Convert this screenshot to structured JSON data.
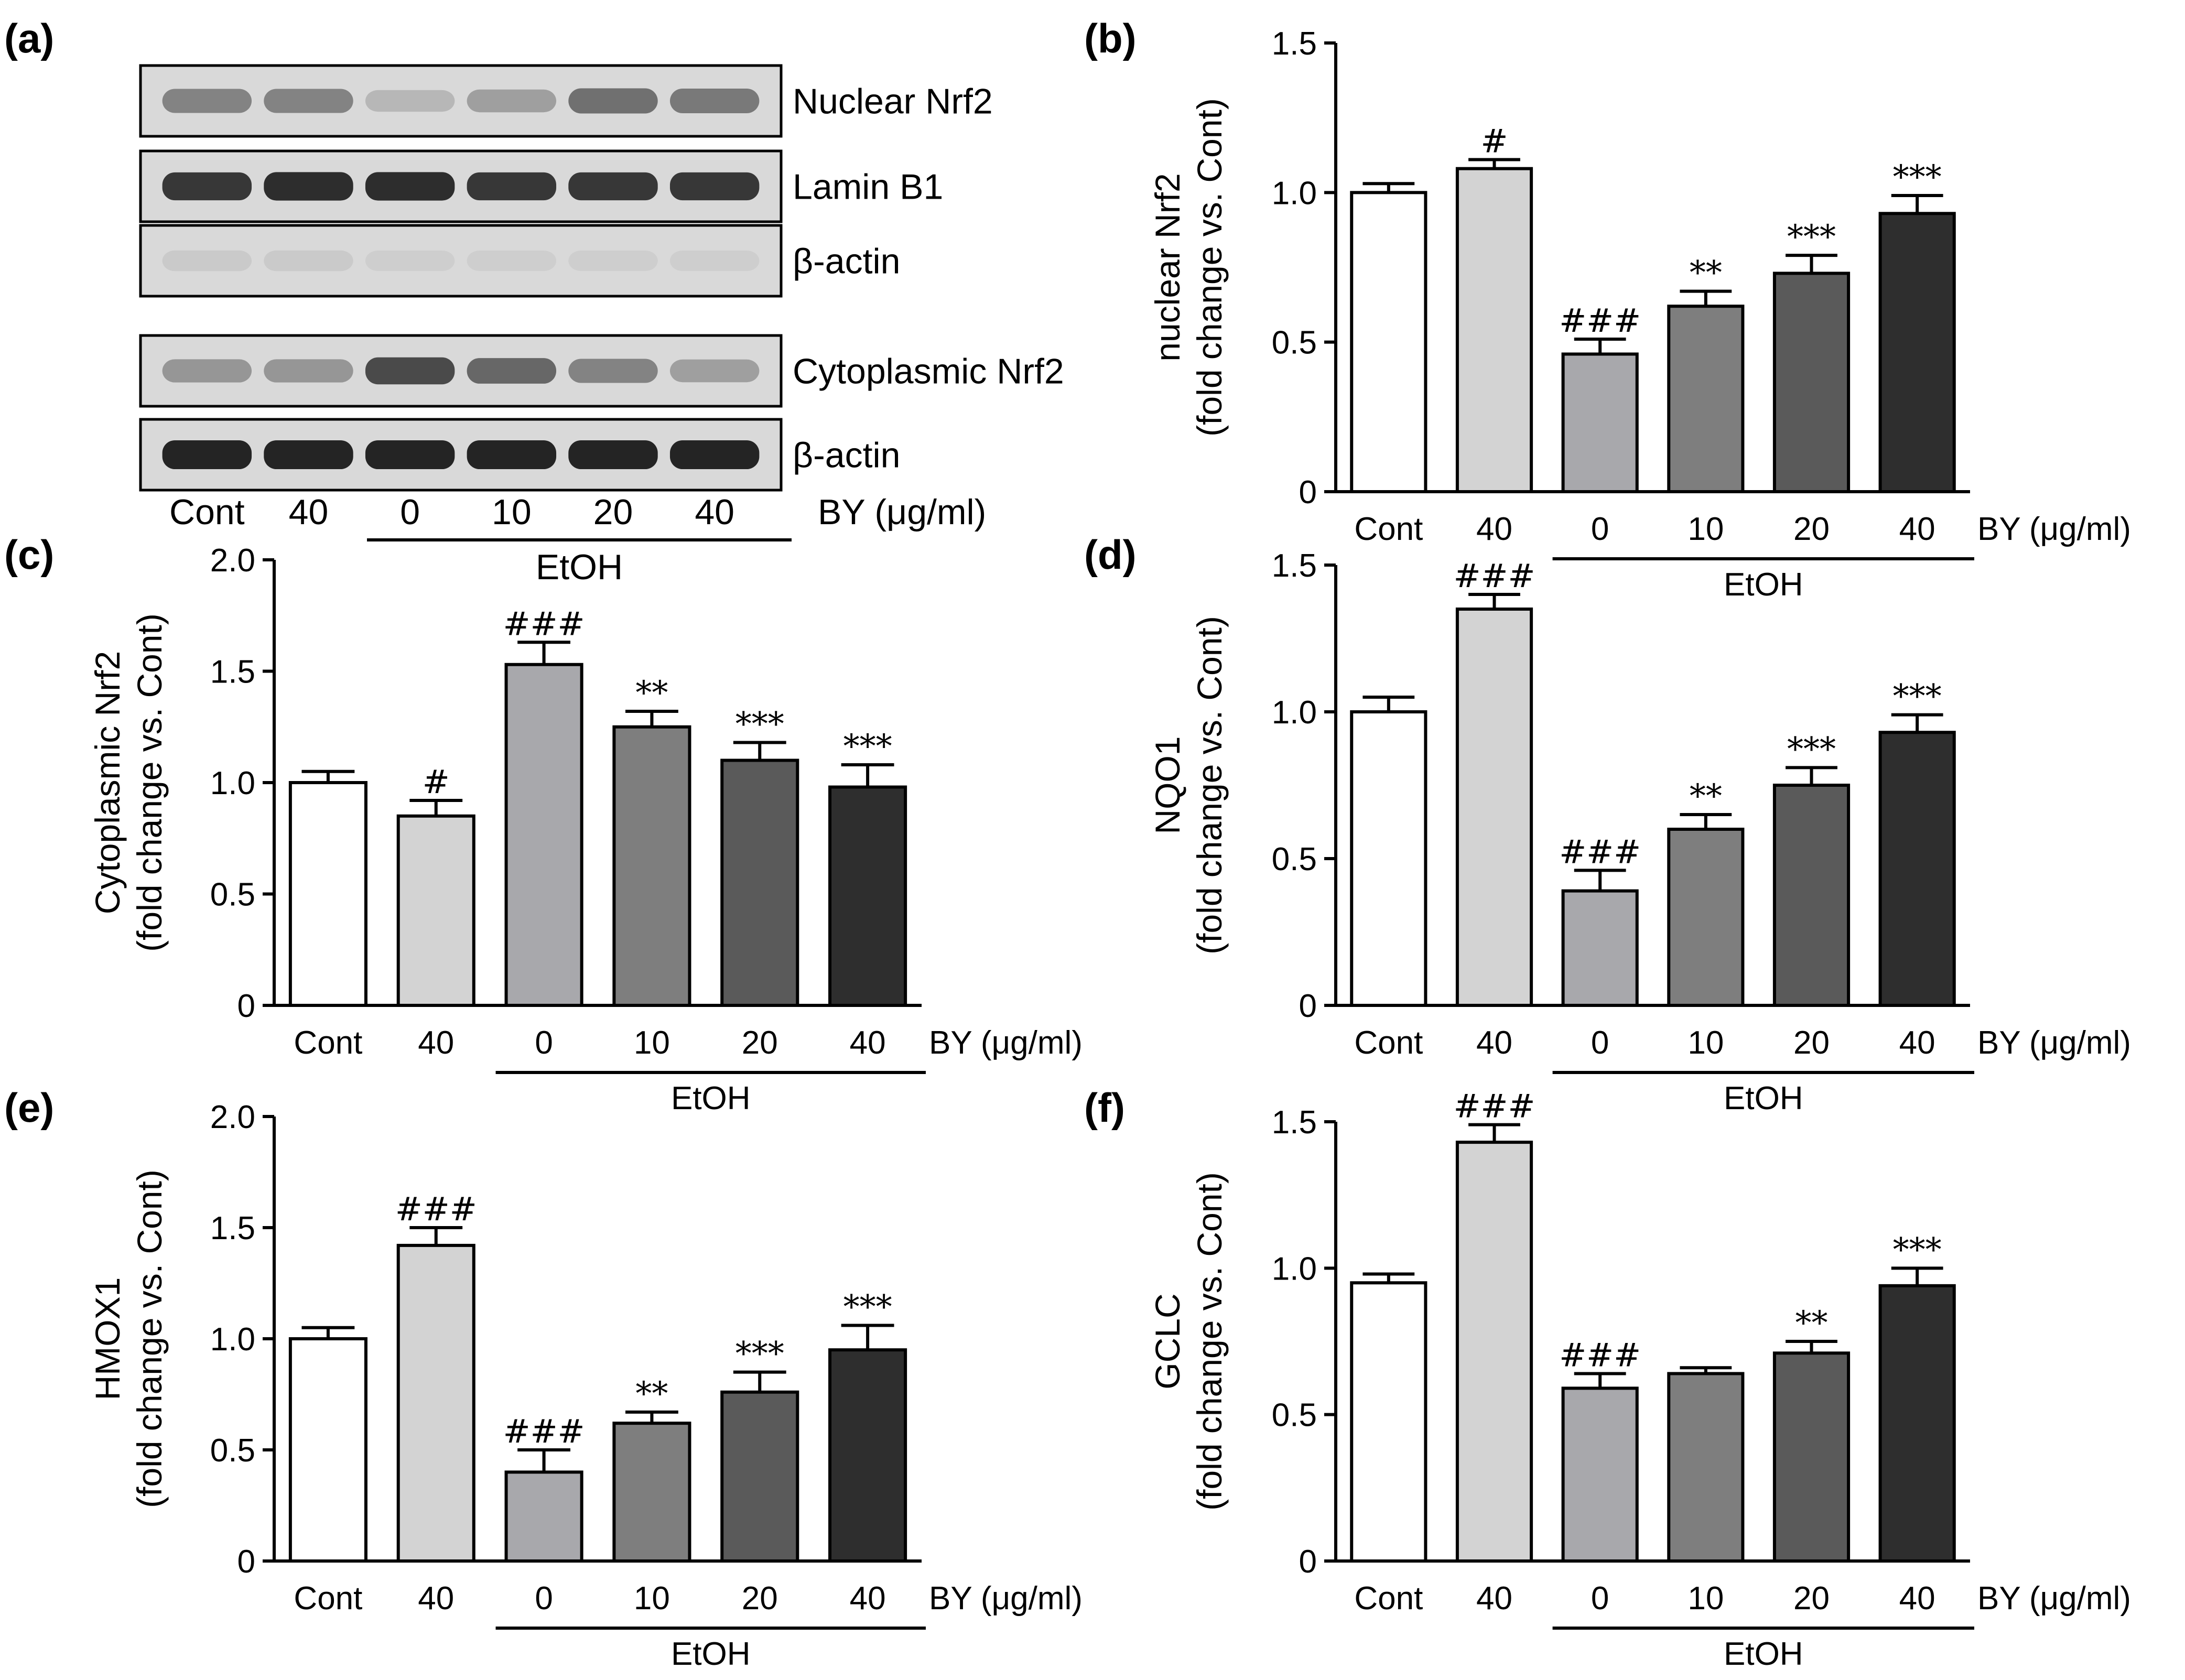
{
  "panels": {
    "a": "(a)",
    "b": "(b)",
    "c": "(c)",
    "d": "(d)",
    "e": "(e)",
    "f": "(f)"
  },
  "blot": {
    "rows": [
      {
        "label": "Nuclear Nrf2",
        "intensities": [
          0.45,
          0.45,
          0.18,
          0.3,
          0.55,
          0.5
        ]
      },
      {
        "label": "Lamin B1",
        "intensities": [
          0.85,
          0.9,
          0.9,
          0.85,
          0.85,
          0.85
        ]
      },
      {
        "label": "β-actin",
        "intensities": [
          0.08,
          0.08,
          0.06,
          0.06,
          0.06,
          0.06
        ]
      },
      {
        "label": "Cytoplasmic Nrf2",
        "intensities": [
          0.35,
          0.35,
          0.75,
          0.6,
          0.45,
          0.3
        ]
      },
      {
        "label": "β-actin",
        "intensities": [
          0.95,
          0.95,
          0.95,
          0.95,
          0.95,
          0.95
        ]
      }
    ],
    "lanes": [
      "Cont",
      "40",
      "0",
      "10",
      "20",
      "40"
    ],
    "unit": "BY (μg/ml)",
    "group": "EtOH"
  },
  "colors": {
    "bars": [
      "#ffffff",
      "#d3d3d3",
      "#a8a8ac",
      "#7e7e7e",
      "#5a5a5a",
      "#2e2e2e"
    ],
    "stroke": "#000000",
    "band": "#1a1a1a"
  },
  "chart_data": [
    {
      "id": "b",
      "type": "bar",
      "categories": [
        "Cont",
        "40",
        "0",
        "10",
        "20",
        "40"
      ],
      "values": [
        1.0,
        1.08,
        0.46,
        0.62,
        0.73,
        0.93
      ],
      "errors": [
        0.03,
        0.03,
        0.05,
        0.05,
        0.06,
        0.06
      ],
      "annotations": [
        "",
        "#",
        "###",
        "**",
        "***",
        "***"
      ],
      "ylabel": "nuclear Nrf2",
      "ylabel2": "(fold change vs. Cont)",
      "ylim": [
        0,
        1.5
      ],
      "yticks": [
        "0",
        "0.5",
        "1.0",
        "1.5"
      ],
      "yticks_values": [
        0,
        0.5,
        1.0,
        1.5
      ],
      "unit": "BY (μg/ml)",
      "group": "EtOH"
    },
    {
      "id": "c",
      "type": "bar",
      "categories": [
        "Cont",
        "40",
        "0",
        "10",
        "20",
        "40"
      ],
      "values": [
        1.0,
        0.85,
        1.53,
        1.25,
        1.1,
        0.98
      ],
      "errors": [
        0.05,
        0.07,
        0.1,
        0.07,
        0.08,
        0.1
      ],
      "annotations": [
        "",
        "#",
        "###",
        "**",
        "***",
        "***"
      ],
      "ylabel": "Cytoplasmic Nrf2",
      "ylabel2": "(fold change vs. Cont)",
      "ylim": [
        0,
        2.0
      ],
      "yticks": [
        "0",
        "0.5",
        "1.0",
        "1.5",
        "2.0"
      ],
      "yticks_values": [
        0,
        0.5,
        1.0,
        1.5,
        2.0
      ],
      "unit": "BY (μg/ml)",
      "group": "EtOH"
    },
    {
      "id": "d",
      "type": "bar",
      "categories": [
        "Cont",
        "40",
        "0",
        "10",
        "20",
        "40"
      ],
      "values": [
        1.0,
        1.35,
        0.39,
        0.6,
        0.75,
        0.93
      ],
      "errors": [
        0.05,
        0.05,
        0.07,
        0.05,
        0.06,
        0.06
      ],
      "annotations": [
        "",
        "###",
        "###",
        "**",
        "***",
        "***"
      ],
      "ylabel": "NQO1",
      "ylabel2": "(fold change vs. Cont)",
      "ylim": [
        0,
        1.5
      ],
      "yticks": [
        "0",
        "0.5",
        "1.0",
        "1.5"
      ],
      "yticks_values": [
        0,
        0.5,
        1.0,
        1.5
      ],
      "unit": "BY (μg/ml)",
      "group": "EtOH"
    },
    {
      "id": "e",
      "type": "bar",
      "categories": [
        "Cont",
        "40",
        "0",
        "10",
        "20",
        "40"
      ],
      "values": [
        1.0,
        1.42,
        0.4,
        0.62,
        0.76,
        0.95
      ],
      "errors": [
        0.05,
        0.08,
        0.1,
        0.05,
        0.09,
        0.11
      ],
      "annotations": [
        "",
        "###",
        "###",
        "**",
        "***",
        "***"
      ],
      "ylabel": "HMOX1",
      "ylabel2": "(fold change vs. Cont)",
      "ylim": [
        0,
        2.0
      ],
      "yticks": [
        "0",
        "0.5",
        "1.0",
        "1.5",
        "2.0"
      ],
      "yticks_values": [
        0,
        0.5,
        1.0,
        1.5,
        2.0
      ],
      "unit": "BY (μg/ml)",
      "group": "EtOH"
    },
    {
      "id": "f",
      "type": "bar",
      "categories": [
        "Cont",
        "40",
        "0",
        "10",
        "20",
        "40"
      ],
      "values": [
        0.95,
        1.43,
        0.59,
        0.64,
        0.71,
        0.94
      ],
      "errors": [
        0.03,
        0.06,
        0.05,
        0.02,
        0.04,
        0.06
      ],
      "annotations": [
        "",
        "###",
        "###",
        "",
        "**",
        "***"
      ],
      "ylabel": "GCLC",
      "ylabel2": "(fold change vs. Cont)",
      "ylim": [
        0,
        1.5
      ],
      "yticks": [
        "0",
        "0.5",
        "1.0",
        "1.5"
      ],
      "yticks_values": [
        0,
        0.5,
        1.0,
        1.5
      ],
      "unit": "BY (μg/ml)",
      "group": "EtOH"
    }
  ]
}
